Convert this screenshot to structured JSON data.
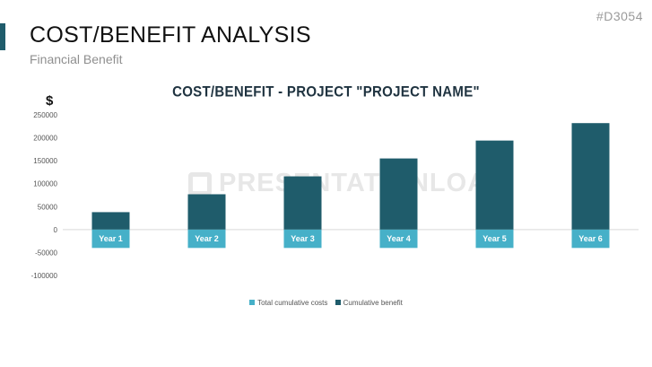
{
  "slide": {
    "title": "COST/BENEFIT ANALYSIS",
    "subtitle": "Financial Benefit",
    "code": "#D3054"
  },
  "watermark": "PRESENTATIONLOAD",
  "colors": {
    "costs": "#46b0c8",
    "benefit": "#1f5c6b"
  },
  "chart_data": {
    "type": "bar",
    "title": "COST/BENEFIT - PROJECT \"PROJECT NAME\"",
    "ylabel": "$",
    "xlabel": "",
    "categories": [
      "Year 1",
      "Year 2",
      "Year 3",
      "Year 4",
      "Year 5",
      "Year 6"
    ],
    "series": [
      {
        "name": "Total cumulative costs",
        "values": [
          -40000,
          -40000,
          -40000,
          -40000,
          -40000,
          -40000
        ]
      },
      {
        "name": "Cumulative benefit",
        "values": [
          38000,
          77000,
          116000,
          155000,
          194000,
          232000
        ]
      }
    ],
    "ylim": [
      -100000,
      250000
    ],
    "yticks": [
      "250000",
      "200000",
      "150000",
      "100000",
      "50000",
      "0",
      "-50000",
      "-100000"
    ],
    "ytick_values": [
      250000,
      200000,
      150000,
      100000,
      50000,
      0,
      -50000,
      -100000
    ],
    "legend": "bottom",
    "grid": false
  }
}
